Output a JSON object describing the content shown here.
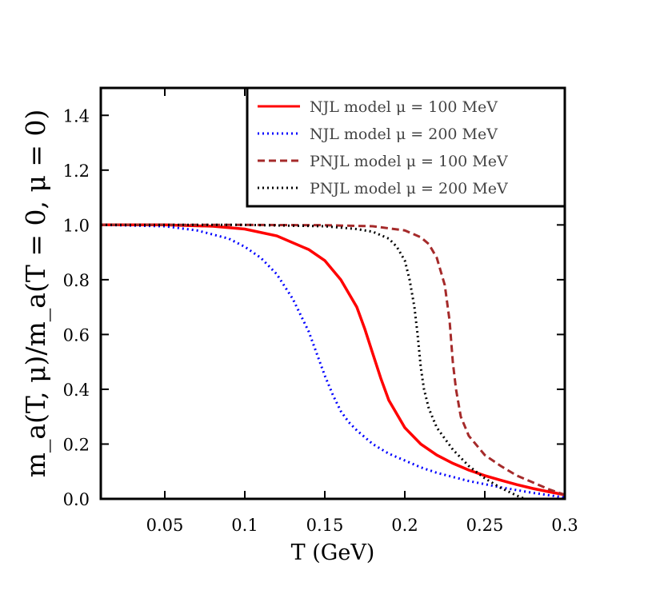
{
  "chart_data": {
    "type": "line",
    "xlabel": "T (GeV)",
    "ylabel": "m_a(T, μ)/m_a(T = 0, μ = 0)",
    "xlim": [
      0.01,
      0.3
    ],
    "ylim": [
      0.0,
      1.5
    ],
    "x_ticks": [
      "0.05",
      "0.1",
      "0.15",
      "0.2",
      "0.25",
      "0.3"
    ],
    "y_ticks": [
      "0.0",
      "0.2",
      "0.4",
      "0.6",
      "0.8",
      "1.0",
      "1.2",
      "1.4"
    ],
    "grid": false,
    "legend_position": "top-right",
    "series": [
      {
        "name": "NJL model μ = 100 MeV",
        "color": "#ff0000",
        "style": "solid",
        "x": [
          0.01,
          0.05,
          0.08,
          0.1,
          0.12,
          0.14,
          0.15,
          0.16,
          0.17,
          0.175,
          0.18,
          0.185,
          0.19,
          0.2,
          0.21,
          0.22,
          0.23,
          0.24,
          0.25,
          0.26,
          0.27,
          0.28,
          0.29,
          0.3
        ],
        "y": [
          1.0,
          1.0,
          0.995,
          0.985,
          0.96,
          0.91,
          0.87,
          0.8,
          0.7,
          0.62,
          0.53,
          0.44,
          0.36,
          0.26,
          0.2,
          0.16,
          0.13,
          0.105,
          0.085,
          0.068,
          0.052,
          0.038,
          0.026,
          0.015
        ]
      },
      {
        "name": "NJL model μ = 200 MeV",
        "color": "#0000ff",
        "style": "dotted",
        "x": [
          0.01,
          0.05,
          0.07,
          0.09,
          0.1,
          0.11,
          0.12,
          0.13,
          0.14,
          0.145,
          0.15,
          0.155,
          0.16,
          0.165,
          0.17,
          0.18,
          0.19,
          0.2,
          0.21,
          0.22,
          0.24,
          0.26,
          0.28,
          0.3
        ],
        "y": [
          1.0,
          0.995,
          0.98,
          0.95,
          0.92,
          0.88,
          0.82,
          0.73,
          0.61,
          0.53,
          0.45,
          0.38,
          0.32,
          0.28,
          0.25,
          0.2,
          0.165,
          0.14,
          0.115,
          0.095,
          0.065,
          0.042,
          0.022,
          0.005
        ]
      },
      {
        "name": "PNJL model μ = 100 MeV",
        "color": "#a52a2a",
        "style": "dashed",
        "x": [
          0.01,
          0.1,
          0.15,
          0.18,
          0.2,
          0.21,
          0.215,
          0.22,
          0.225,
          0.228,
          0.23,
          0.232,
          0.235,
          0.24,
          0.25,
          0.26,
          0.27,
          0.28,
          0.29,
          0.3
        ],
        "y": [
          1.0,
          1.0,
          0.999,
          0.995,
          0.98,
          0.955,
          0.93,
          0.88,
          0.78,
          0.65,
          0.5,
          0.4,
          0.3,
          0.23,
          0.16,
          0.12,
          0.085,
          0.06,
          0.035,
          0.015
        ]
      },
      {
        "name": "PNJL model μ = 200 MeV",
        "color": "#000000",
        "style": "dotted",
        "x": [
          0.01,
          0.1,
          0.15,
          0.17,
          0.18,
          0.19,
          0.195,
          0.2,
          0.203,
          0.206,
          0.208,
          0.21,
          0.212,
          0.215,
          0.22,
          0.23,
          0.24,
          0.25,
          0.26,
          0.27,
          0.275
        ],
        "y": [
          1.0,
          1.0,
          0.995,
          0.985,
          0.975,
          0.95,
          0.92,
          0.87,
          0.8,
          0.7,
          0.6,
          0.48,
          0.4,
          0.33,
          0.26,
          0.18,
          0.12,
          0.075,
          0.04,
          0.012,
          0.0
        ]
      }
    ]
  }
}
